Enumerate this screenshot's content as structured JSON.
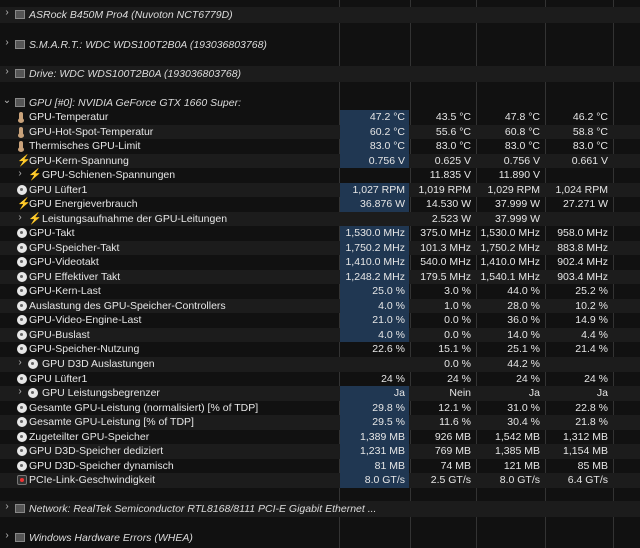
{
  "sections": [
    {
      "title": "ASRock B450M Pro4 (Nuvoton NCT6779D)",
      "expanded": false
    },
    {
      "title": "S.M.A.R.T.: WDC WDS100T2B0A (193036803768)",
      "expanded": false
    },
    {
      "title": "Drive: WDC WDS100T2B0A (193036803768)",
      "expanded": false
    },
    {
      "title": "GPU [#0]: NVIDIA GeForce GTX 1660 Super:",
      "expanded": true
    },
    {
      "title": "Network: RealTek Semiconductor RTL8168/8111 PCI-E Gigabit Ethernet ...",
      "expanded": false
    },
    {
      "title": "Windows Hardware Errors (WHEA)",
      "expanded": false
    }
  ],
  "gpu_rows": [
    {
      "icon": "thermometer-icon",
      "name": "GPU-Temperatur",
      "cur": "47.2 °C",
      "min": "43.5 °C",
      "max": "47.8 °C",
      "avg": "46.2 °C"
    },
    {
      "icon": "thermometer-icon",
      "name": "GPU-Hot-Spot-Temperatur",
      "cur": "60.2 °C",
      "min": "55.6 °C",
      "max": "60.8 °C",
      "avg": "58.8 °C"
    },
    {
      "icon": "thermometer-icon",
      "name": "Thermisches GPU-Limit",
      "cur": "83.0 °C",
      "min": "83.0 °C",
      "max": "83.0 °C",
      "avg": "83.0 °C"
    },
    {
      "icon": "lightning-icon",
      "name": "GPU-Kern-Spannung",
      "cur": "0.756 V",
      "min": "0.625 V",
      "max": "0.756 V",
      "avg": "0.661 V"
    },
    {
      "icon": "lightning-icon",
      "name": "GPU-Schienen-Spannungen",
      "expander": true,
      "cur": "",
      "min": "11.835 V",
      "max": "11.890 V",
      "avg": ""
    },
    {
      "icon": "fan-icon",
      "name": "GPU Lüfter1",
      "cur": "1,027 RPM",
      "min": "1,019 RPM",
      "max": "1,029 RPM",
      "avg": "1,024 RPM"
    },
    {
      "icon": "lightning-icon",
      "name": "GPU Energieverbrauch",
      "cur": "36.876 W",
      "min": "14.530 W",
      "max": "37.999 W",
      "avg": "27.271 W"
    },
    {
      "icon": "lightning-icon",
      "name": "Leistungsaufnahme der GPU-Leitungen",
      "expander": true,
      "cur": "",
      "min": "2.523 W",
      "max": "37.999 W",
      "avg": ""
    },
    {
      "icon": "clock-icon",
      "name": "GPU-Takt",
      "cur": "1,530.0 MHz",
      "min": "375.0 MHz",
      "max": "1,530.0 MHz",
      "avg": "958.0 MHz"
    },
    {
      "icon": "clock-icon",
      "name": "GPU-Speicher-Takt",
      "cur": "1,750.2 MHz",
      "min": "101.3 MHz",
      "max": "1,750.2 MHz",
      "avg": "883.8 MHz"
    },
    {
      "icon": "clock-icon",
      "name": "GPU-Videotakt",
      "cur": "1,410.0 MHz",
      "min": "540.0 MHz",
      "max": "1,410.0 MHz",
      "avg": "902.4 MHz"
    },
    {
      "icon": "clock-icon",
      "name": "GPU Effektiver Takt",
      "cur": "1,248.2 MHz",
      "min": "179.5 MHz",
      "max": "1,540.1 MHz",
      "avg": "903.4 MHz"
    },
    {
      "icon": "usage-icon",
      "name": "GPU-Kern-Last",
      "cur": "25.0 %",
      "min": "3.0 %",
      "max": "44.0 %",
      "avg": "25.2 %"
    },
    {
      "icon": "usage-icon",
      "name": "Auslastung des GPU-Speicher-Controllers",
      "cur": "4.0 %",
      "min": "1.0 %",
      "max": "28.0 %",
      "avg": "10.2 %"
    },
    {
      "icon": "usage-icon",
      "name": "GPU-Video-Engine-Last",
      "cur": "21.0 %",
      "min": "0.0 %",
      "max": "36.0 %",
      "avg": "14.9 %"
    },
    {
      "icon": "usage-icon",
      "name": "GPU-Buslast",
      "cur": "4.0 %",
      "min": "0.0 %",
      "max": "14.0 %",
      "avg": "4.4 %"
    },
    {
      "icon": "usage-icon",
      "name": "GPU-Speicher-Nutzung",
      "cur": "22.6 %",
      "min": "15.1 %",
      "max": "25.1 %",
      "avg": "21.4 %"
    },
    {
      "icon": "usage-icon",
      "name": "GPU D3D Auslastungen",
      "expander": true,
      "cur": "",
      "min": "0.0 %",
      "max": "44.2 %",
      "avg": ""
    },
    {
      "icon": "usage-icon",
      "name": "GPU Lüfter1",
      "cur": "24 %",
      "min": "24 %",
      "max": "24 %",
      "avg": "24 %"
    },
    {
      "icon": "usage-icon",
      "name": "GPU Leistungsbegrenzer",
      "expander": true,
      "cur": "Ja",
      "min": "Nein",
      "max": "Ja",
      "avg": "Ja"
    },
    {
      "icon": "usage-icon",
      "name": "Gesamte GPU-Leistung (normalisiert) [% of TDP]",
      "cur": "29.8 %",
      "min": "12.1 %",
      "max": "31.0 %",
      "avg": "22.8 %"
    },
    {
      "icon": "usage-icon",
      "name": "Gesamte GPU-Leistung [% of TDP]",
      "cur": "29.5 %",
      "min": "11.6 %",
      "max": "30.4 %",
      "avg": "21.8 %"
    },
    {
      "icon": "usage-icon",
      "name": "Zugeteilter GPU-Speicher",
      "cur": "1,389 MB",
      "min": "926 MB",
      "max": "1,542 MB",
      "avg": "1,312 MB"
    },
    {
      "icon": "usage-icon",
      "name": "GPU D3D-Speicher dediziert",
      "cur": "1,231 MB",
      "min": "769 MB",
      "max": "1,385 MB",
      "avg": "1,154 MB"
    },
    {
      "icon": "usage-icon",
      "name": "GPU D3D-Speicher dynamisch",
      "cur": "81 MB",
      "min": "74 MB",
      "max": "121 MB",
      "avg": "85 MB"
    },
    {
      "icon": "link-icon",
      "name": "PCIe-Link-Geschwindigkeit",
      "cur": "8.0 GT/s",
      "min": "2.5 GT/s",
      "max": "8.0 GT/s",
      "avg": "6.4 GT/s"
    }
  ]
}
